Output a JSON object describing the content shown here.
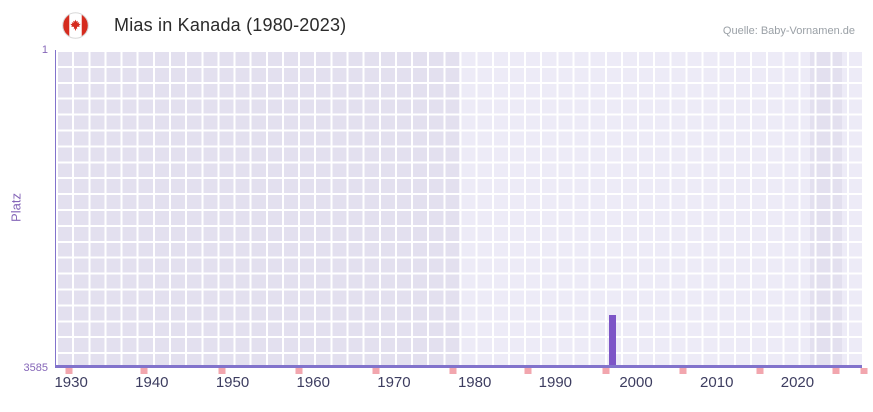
{
  "header": {
    "title": "Mias in Kanada (1980-2023)",
    "source": "Quelle: Baby-Vornamen.de",
    "flag_icon": "canada-flag-icon"
  },
  "chart_data": {
    "type": "bar",
    "title": "Mias in Kanada (1980-2023)",
    "xlabel": "",
    "ylabel": "Platz",
    "x_range": [
      1928,
      2028
    ],
    "x_ticks": [
      1930,
      1940,
      1950,
      1960,
      1970,
      1980,
      1990,
      2000,
      2010,
      2020
    ],
    "y_axis": {
      "min_value": 1,
      "max_value": 3585,
      "inverted": true,
      "top_label": "1",
      "bottom_label": "3585"
    },
    "grid": true,
    "legend": false,
    "series": [
      {
        "name": "Platz",
        "points": [
          {
            "year": 1997,
            "rank": 3020
          }
        ]
      }
    ],
    "highlight_ranges": [
      [
        1978,
        2021.5
      ],
      [
        2025.5,
        2028
      ]
    ],
    "bottom_marker_positions_pct": [
      1.6,
      10.9,
      20.6,
      30.1,
      39.7,
      49.2,
      58.6,
      68.3,
      77.8,
      87.4,
      96.8,
      100.3
    ],
    "colors": {
      "plot-bg": "#e3e0ef",
      "plot-bg-highlight": "#edebf7",
      "grid-line": "#ffffff",
      "bar-color": "#7d55c7",
      "axis-line": "#8273cc",
      "axis-label-purple": "#8566b8",
      "x-label-color": "#3d3d60",
      "marker-pink": "#f2a6ae",
      "title-color": "#2b2b2b",
      "source-color": "#9aa0a6"
    }
  }
}
